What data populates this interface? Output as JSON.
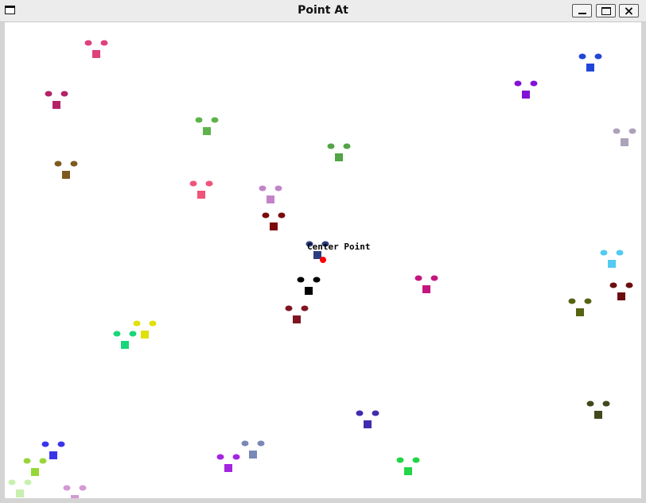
{
  "window": {
    "title": "Point At",
    "minimize_label": "_",
    "close_label": "×"
  },
  "canvas": {
    "center_label": "Center Point",
    "center_color": "#ff0000",
    "background": "#ffffff"
  },
  "figures": [
    {
      "color": "#e0407c"
    },
    {
      "color": "#b52268"
    },
    {
      "color": "#5fb24a"
    },
    {
      "color": "#52a446"
    },
    {
      "color": "#7e5a1c"
    },
    {
      "color": "#f0547a"
    },
    {
      "color": "#c383c9"
    },
    {
      "color": "#7c0a0a"
    },
    {
      "color": "#2b3d82"
    },
    {
      "color": "#000000"
    },
    {
      "color": "#7f1520"
    },
    {
      "color": "#e0e008"
    },
    {
      "color": "#18d679"
    },
    {
      "color": "#c4167e"
    },
    {
      "color": "#3f2caf"
    },
    {
      "color": "#3a36e8"
    },
    {
      "color": "#96d636"
    },
    {
      "color": "#c8f0b0"
    },
    {
      "color": "#a424e0"
    },
    {
      "color": "#7a88b6"
    },
    {
      "color": "#20d646"
    },
    {
      "color": "#d49ad4"
    },
    {
      "color": "#2146d6"
    },
    {
      "color": "#8312d8"
    },
    {
      "color": "#aca2ba"
    },
    {
      "color": "#52caf2"
    },
    {
      "color": "#586212"
    },
    {
      "color": "#6c0e0e"
    },
    {
      "color": "#40481c"
    },
    {
      "color": "#20aec0"
    }
  ]
}
